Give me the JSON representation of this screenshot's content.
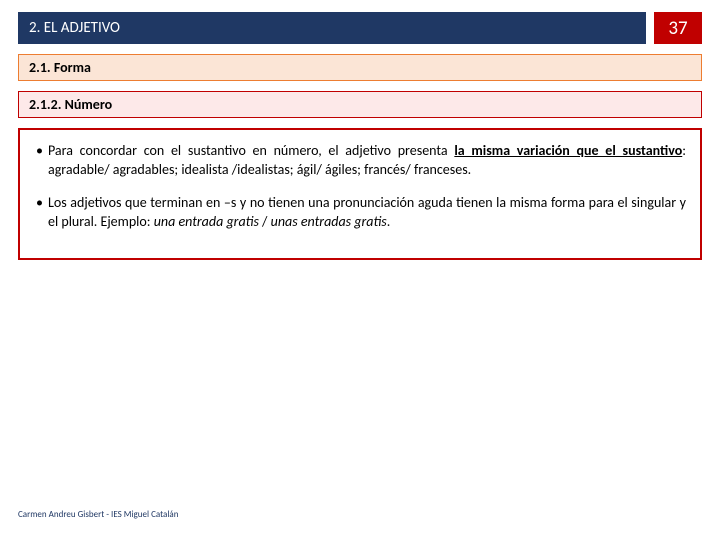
{
  "header": {
    "title": "2. EL ADJETIVO",
    "page_number": "37",
    "title_bg": "#1f3864",
    "title_color": "#ffffff",
    "pagenum_bg": "#c00000",
    "pagenum_color": "#ffffff"
  },
  "section1": {
    "label": "2.1. Forma",
    "bg": "#fbe5d6",
    "border": "#ed7d31"
  },
  "section2": {
    "label": "2.1.2. Número",
    "bg": "#fde9e9",
    "border": "#c00000"
  },
  "content": {
    "border_color": "#c00000",
    "bullet1_pre": "Para concordar con el sustantivo en número, el adjetivo presenta ",
    "bullet1_emph": "la misma variación que el sustantivo",
    "bullet1_post": ": agradable/ agradables; idealista /idealistas; ágil/ ágiles; francés/ franceses.",
    "bullet2_pre": "Los adjetivos que terminan en –s y no tienen una pronunciación aguda tienen la misma forma para el singular y el plural. Ejemplo: ",
    "bullet2_it1": "una entrada gratis",
    "bullet2_mid": " / ",
    "bullet2_it2": "unas entradas gratis",
    "bullet2_post": "."
  },
  "footer": {
    "text": "Carmen Andreu Gisbert - IES Miguel Catalán",
    "color": "#203864"
  }
}
